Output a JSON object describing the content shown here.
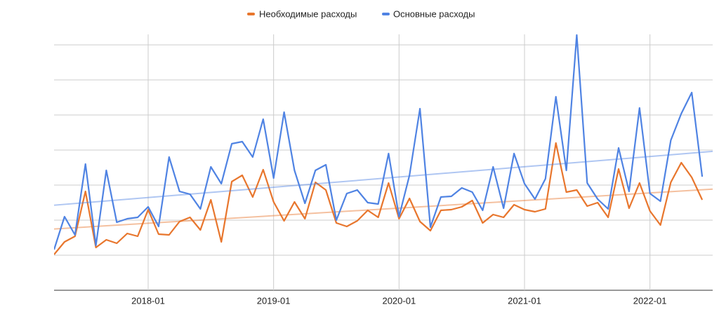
{
  "chart_data": {
    "type": "line",
    "x": [
      "2017-04",
      "2017-05",
      "2017-06",
      "2017-07",
      "2017-08",
      "2017-09",
      "2017-10",
      "2017-11",
      "2017-12",
      "2018-01",
      "2018-02",
      "2018-03",
      "2018-04",
      "2018-05",
      "2018-06",
      "2018-07",
      "2018-08",
      "2018-09",
      "2018-10",
      "2018-11",
      "2018-12",
      "2019-01",
      "2019-02",
      "2019-03",
      "2019-04",
      "2019-05",
      "2019-06",
      "2019-07",
      "2019-08",
      "2019-09",
      "2019-10",
      "2019-11",
      "2019-12",
      "2020-01",
      "2020-02",
      "2020-03",
      "2020-04",
      "2020-05",
      "2020-06",
      "2020-07",
      "2020-08",
      "2020-09",
      "2020-10",
      "2020-11",
      "2020-12",
      "2021-01",
      "2021-02",
      "2021-03",
      "2021-04",
      "2021-05",
      "2021-06",
      "2021-07",
      "2021-08",
      "2021-09",
      "2021-10",
      "2021-11",
      "2021-12",
      "2022-01",
      "2022-02",
      "2022-03",
      "2022-04",
      "2022-05",
      "2022-06"
    ],
    "series": [
      {
        "name": "Необходимые расходы",
        "color": "#e8762d",
        "trendline": true,
        "values": [
          1.02,
          1.38,
          1.54,
          2.82,
          1.22,
          1.44,
          1.34,
          1.62,
          1.54,
          2.3,
          1.6,
          1.58,
          1.96,
          2.08,
          1.72,
          2.58,
          1.38,
          3.1,
          3.28,
          2.66,
          3.44,
          2.52,
          1.98,
          2.52,
          2.04,
          3.08,
          2.86,
          1.92,
          1.82,
          1.98,
          2.28,
          2.08,
          3.06,
          2.04,
          2.62,
          1.96,
          1.7,
          2.28,
          2.3,
          2.38,
          2.56,
          1.92,
          2.16,
          2.08,
          2.44,
          2.3,
          2.24,
          2.32,
          4.2,
          2.8,
          2.86,
          2.4,
          2.5,
          2.08,
          3.46,
          2.34,
          3.06,
          2.26,
          1.86,
          3.08,
          3.64,
          3.22,
          2.58
        ]
      },
      {
        "name": "Основные расходы",
        "color": "#4f83e3",
        "trendline": true,
        "values": [
          1.16,
          2.1,
          1.58,
          3.6,
          1.28,
          3.42,
          1.94,
          2.04,
          2.08,
          2.38,
          1.82,
          3.8,
          2.82,
          2.74,
          2.32,
          3.52,
          3.04,
          4.18,
          4.24,
          3.8,
          4.88,
          3.2,
          5.08,
          3.42,
          2.48,
          3.42,
          3.58,
          2.0,
          2.76,
          2.86,
          2.5,
          2.46,
          3.9,
          2.1,
          3.28,
          5.18,
          1.8,
          2.66,
          2.68,
          2.92,
          2.8,
          2.28,
          3.52,
          2.34,
          3.9,
          3.04,
          2.6,
          3.18,
          5.52,
          3.42,
          7.28,
          3.06,
          2.6,
          2.32,
          4.06,
          2.82,
          5.2,
          2.76,
          2.54,
          4.28,
          5.04,
          5.64,
          3.24
        ]
      }
    ],
    "xlim": [
      "2017-04",
      "2022-07"
    ],
    "xticks": [
      "2018-01",
      "2019-01",
      "2020-01",
      "2021-01",
      "2022-01"
    ],
    "ylim": [
      0,
      7.4
    ],
    "yticks": [
      0,
      1,
      2,
      3,
      4,
      5,
      6,
      7
    ],
    "grid": true,
    "legend": "top"
  }
}
